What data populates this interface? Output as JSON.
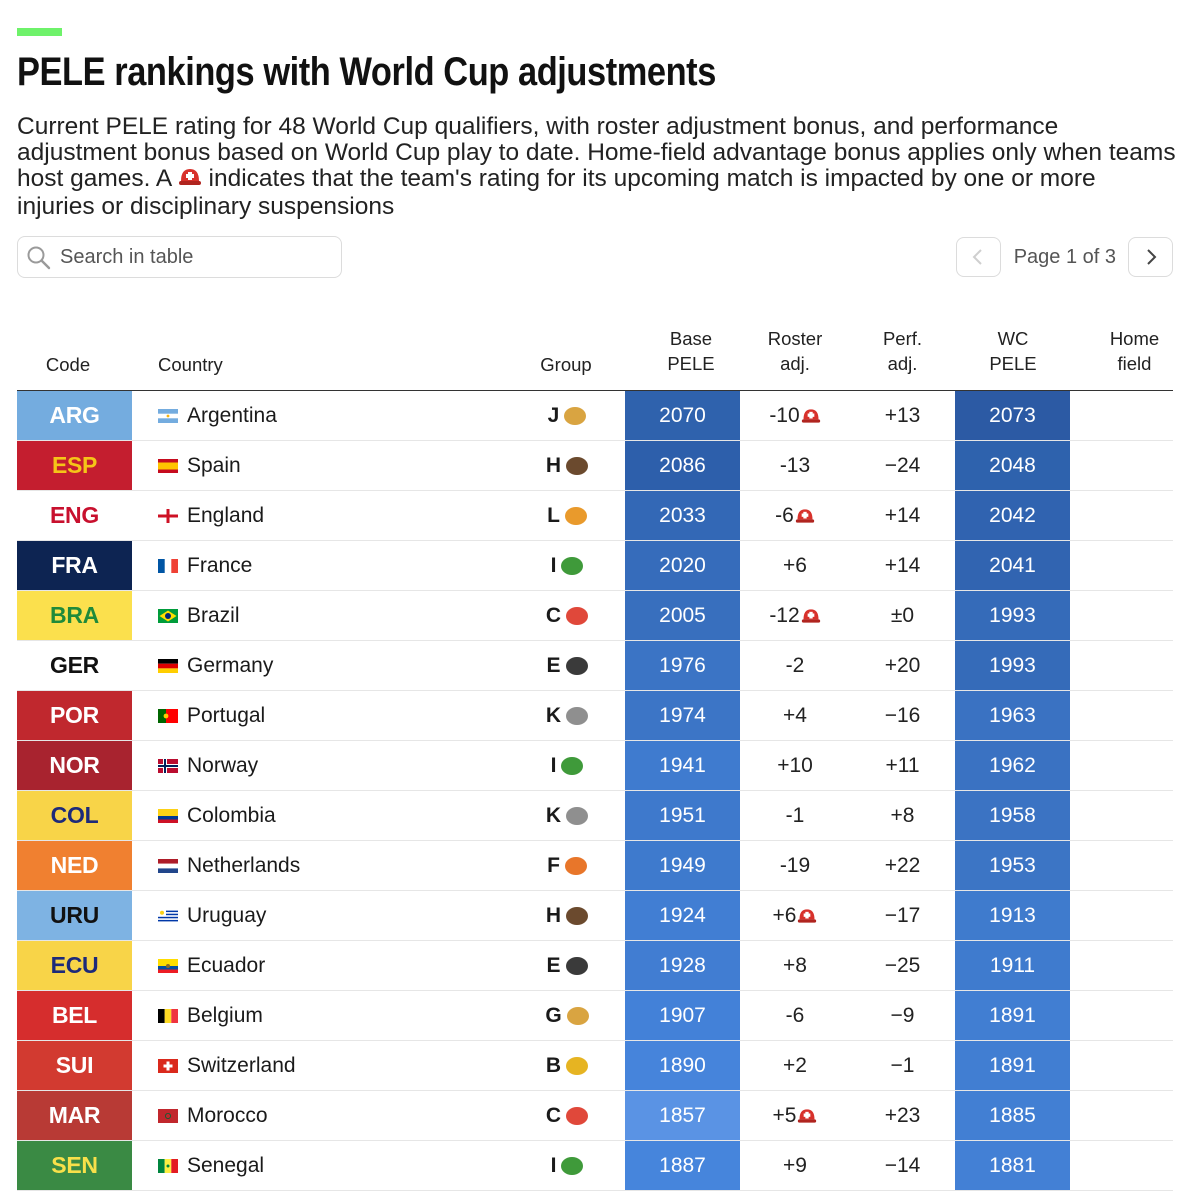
{
  "header": {
    "title": "PELE rankings with World Cup adjustments",
    "subtitle_part1": "Current PELE rating for 48 World Cup qualifiers, with roster adjustment bonus, and performance adjustment bonus based on World Cup play to date. Home-field advantage bonus applies only when teams host games. A",
    "subtitle_part2": "indicates that the team's rating for its upcoming match is impacted by one or more injuries or disciplinary suspensions",
    "accent_color": "#6ef26a"
  },
  "search": {
    "placeholder": "Search in table",
    "value": "",
    "icon": "search-icon"
  },
  "pagination": {
    "label": "Page 1 of 3",
    "current": 1,
    "total": 3
  },
  "table": {
    "columns": {
      "code": "Code",
      "country": "Country",
      "group": "Group",
      "base_1": "Base",
      "base_2": "PELE",
      "roster_1": "Roster",
      "roster_2": "adj.",
      "perf_1": "Perf.",
      "perf_2": "adj.",
      "wc_1": "WC",
      "wc_2": "PELE",
      "home_1": "Home",
      "home_2": "field"
    },
    "rows": [
      {
        "code": "ARG",
        "country": "Argentina",
        "group": "J",
        "group_icon": "cheetah",
        "base": "2070",
        "roster": "-10",
        "injury": true,
        "perf": "+13",
        "wc": "2073",
        "home": "",
        "code_bg": "#74acdf",
        "code_fg": "#ffffff",
        "base_bg": "#2f62ad",
        "wc_bg": "#2c5aa4",
        "flag": "ARG"
      },
      {
        "code": "ESP",
        "country": "Spain",
        "group": "H",
        "group_icon": "hedgehog",
        "base": "2086",
        "roster": "-13",
        "injury": false,
        "perf": "−24",
        "wc": "2048",
        "home": "",
        "code_bg": "#c41e2f",
        "code_fg": "#f5c518",
        "base_bg": "#2d5fab",
        "wc_bg": "#2e62ad",
        "flag": "ESP"
      },
      {
        "code": "ENG",
        "country": "England",
        "group": "L",
        "group_icon": "lion",
        "base": "2033",
        "roster": "-6",
        "injury": true,
        "perf": "+14",
        "wc": "2042",
        "home": "",
        "code_bg": "#ffffff",
        "code_fg": "#c8102e",
        "base_bg": "#3368b6",
        "wc_bg": "#3063b0",
        "flag": "ENG"
      },
      {
        "code": "FRA",
        "country": "France",
        "group": "I",
        "group_icon": "lizard",
        "base": "2020",
        "roster": "+6",
        "injury": false,
        "perf": "+14",
        "wc": "2041",
        "home": "",
        "code_bg": "#0d2452",
        "code_fg": "#ffffff",
        "base_bg": "#366cbb",
        "wc_bg": "#3164b1",
        "flag": "FRA"
      },
      {
        "code": "BRA",
        "country": "Brazil",
        "group": "C",
        "group_icon": "crab",
        "base": "2005",
        "roster": "-12",
        "injury": true,
        "perf": "±0",
        "wc": "1993",
        "home": "",
        "code_bg": "#fbe04d",
        "code_fg": "#1f8a3a",
        "base_bg": "#386fbe",
        "wc_bg": "#356bb9",
        "flag": "BRA"
      },
      {
        "code": "GER",
        "country": "Germany",
        "group": "E",
        "group_icon": "eagle",
        "base": "1976",
        "roster": "-2",
        "injury": false,
        "perf": "+20",
        "wc": "1993",
        "home": "",
        "code_bg": "#ffffff",
        "code_fg": "#111111",
        "base_bg": "#3b74c5",
        "wc_bg": "#356bb9",
        "flag": "GER"
      },
      {
        "code": "POR",
        "country": "Portugal",
        "group": "K",
        "group_icon": "koala",
        "base": "1974",
        "roster": "+4",
        "injury": false,
        "perf": "−16",
        "wc": "1963",
        "home": "",
        "code_bg": "#c0282e",
        "code_fg": "#ffffff",
        "base_bg": "#3c75c6",
        "wc_bg": "#3a72c2",
        "flag": "POR"
      },
      {
        "code": "NOR",
        "country": "Norway",
        "group": "I",
        "group_icon": "lizard",
        "base": "1941",
        "roster": "+10",
        "injury": false,
        "perf": "+11",
        "wc": "1962",
        "home": "",
        "code_bg": "#a8232f",
        "code_fg": "#ffffff",
        "base_bg": "#3f7bcf",
        "wc_bg": "#3a72c2",
        "flag": "NOR"
      },
      {
        "code": "COL",
        "country": "Colombia",
        "group": "K",
        "group_icon": "koala",
        "base": "1951",
        "roster": "-1",
        "injury": false,
        "perf": "+8",
        "wc": "1958",
        "home": "",
        "code_bg": "#f8d448",
        "code_fg": "#1d2a7a",
        "base_bg": "#3e79cc",
        "wc_bg": "#3b73c3",
        "flag": "COL"
      },
      {
        "code": "NED",
        "country": "Netherlands",
        "group": "F",
        "group_icon": "fox",
        "base": "1949",
        "roster": "-19",
        "injury": false,
        "perf": "+22",
        "wc": "1953",
        "home": "",
        "code_bg": "#f08030",
        "code_fg": "#ffffff",
        "base_bg": "#3e7acd",
        "wc_bg": "#3c75c5",
        "flag": "NED"
      },
      {
        "code": "URU",
        "country": "Uruguay",
        "group": "H",
        "group_icon": "hedgehog",
        "base": "1924",
        "roster": "+6",
        "injury": true,
        "perf": "−17",
        "wc": "1913",
        "home": "",
        "code_bg": "#7eb3e3",
        "code_fg": "#111111",
        "base_bg": "#417ed3",
        "wc_bg": "#3f7bcd",
        "flag": "URU"
      },
      {
        "code": "ECU",
        "country": "Ecuador",
        "group": "E",
        "group_icon": "eagle",
        "base": "1928",
        "roster": "+8",
        "injury": false,
        "perf": "−25",
        "wc": "1911",
        "home": "",
        "code_bg": "#f8d448",
        "code_fg": "#1d2a7a",
        "base_bg": "#417dd2",
        "wc_bg": "#3f7bce",
        "flag": "ECU"
      },
      {
        "code": "BEL",
        "country": "Belgium",
        "group": "G",
        "group_icon": "giraffe",
        "base": "1907",
        "roster": "-6",
        "injury": false,
        "perf": "−9",
        "wc": "1891",
        "home": "",
        "code_bg": "#d62d2d",
        "code_fg": "#ffffff",
        "base_bg": "#4381d8",
        "wc_bg": "#417ed2",
        "flag": "BEL"
      },
      {
        "code": "SUI",
        "country": "Switzerland",
        "group": "B",
        "group_icon": "bee",
        "base": "1890",
        "roster": "+2",
        "injury": false,
        "perf": "−1",
        "wc": "1891",
        "home": "",
        "code_bg": "#d23a30",
        "code_fg": "#ffffff",
        "base_bg": "#4684db",
        "wc_bg": "#417ed2",
        "flag": "SUI"
      },
      {
        "code": "MAR",
        "country": "Morocco",
        "group": "C",
        "group_icon": "crab",
        "base": "1857",
        "roster": "+5",
        "injury": true,
        "perf": "+23",
        "wc": "1885",
        "home": "",
        "code_bg": "#b83a35",
        "code_fg": "#ffffff",
        "base_bg": "#5a93e4",
        "wc_bg": "#427fd3",
        "flag": "MAR"
      },
      {
        "code": "SEN",
        "country": "Senegal",
        "group": "I",
        "group_icon": "lizard",
        "base": "1887",
        "roster": "+9",
        "injury": false,
        "perf": "−14",
        "wc": "1881",
        "home": "",
        "code_bg": "#3a8a44",
        "code_fg": "#f8e04a",
        "base_bg": "#4685dc",
        "wc_bg": "#4380d5",
        "flag": "SEN"
      }
    ]
  }
}
